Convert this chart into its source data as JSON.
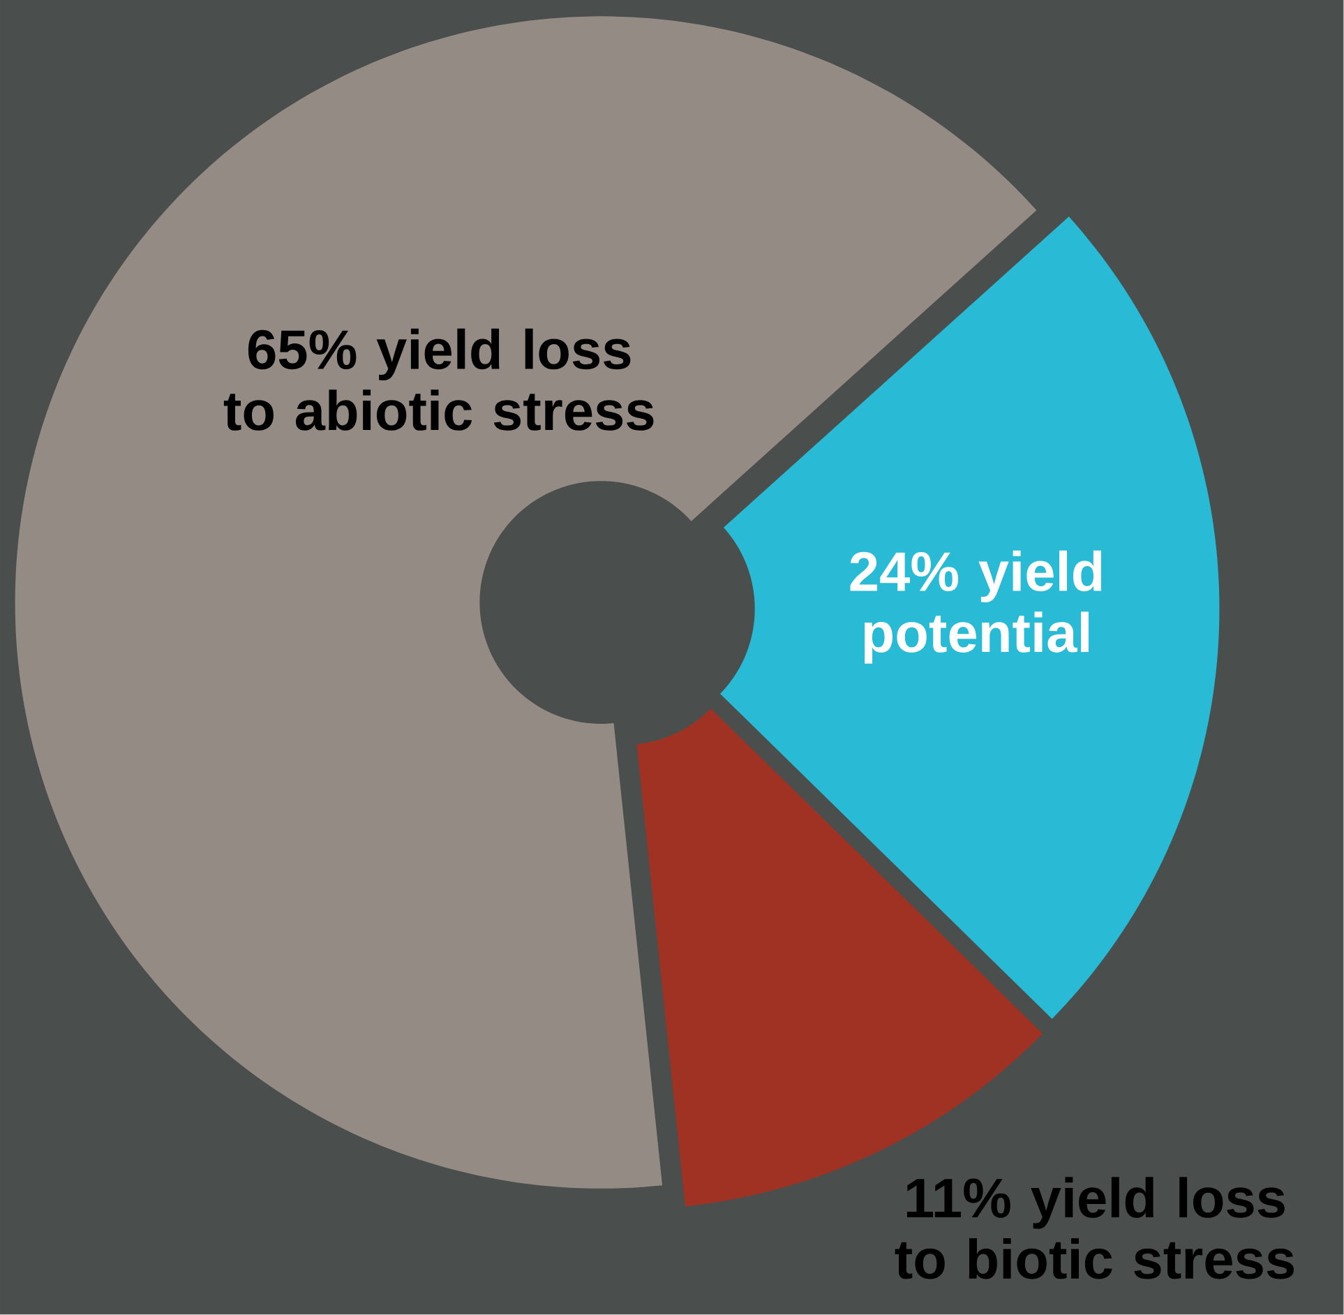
{
  "chart_data": {
    "type": "donut",
    "categories": [
      "yield loss to abiotic stress",
      "yield potential",
      "yield loss to biotic stress"
    ],
    "values": [
      65,
      24,
      11
    ],
    "value_labels": [
      "65%",
      "24%",
      "11%"
    ],
    "colors": [
      "#958b85",
      "#29bad6",
      "#a03223"
    ]
  }
}
